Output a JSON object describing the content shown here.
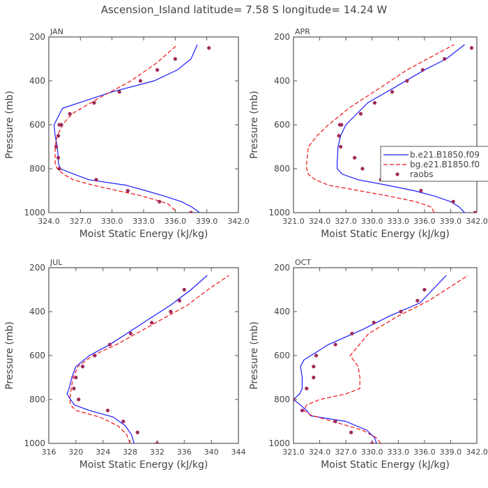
{
  "suptitle": "Ascension_Island  latitude= 7.58 S longitude= 14.24 W",
  "legend": {
    "entries": [
      "b.e21.B1850.f09",
      "bg.e21.B1850.f0",
      "raobs"
    ]
  },
  "colors": {
    "model_b": "#1a1aff",
    "model_bg": "#ee1111",
    "raobs": "#9e2a5b",
    "axis": "#555555"
  },
  "chart_data": [
    {
      "type": "line",
      "title": "JAN",
      "xlabel": "Moist Static Energy (kJ/kg)",
      "ylabel": "Pressure (mb)",
      "xlim": [
        324.0,
        342.0
      ],
      "ylim": [
        1000,
        200
      ],
      "xticks": [
        324,
        327,
        330,
        333,
        336,
        339,
        342
      ],
      "xtick_labels": [
        "324.0",
        "327.0",
        "330.0",
        "333.0",
        "336.0",
        "339.0",
        "342.0"
      ],
      "yticks": [
        200,
        400,
        600,
        800,
        1000
      ],
      "ytick_labels": [
        "200",
        "400",
        "600",
        "800",
        "1000"
      ],
      "series": [
        {
          "name": "b.e21.B1850.f09",
          "style": "solid",
          "x": [
            338.3,
            337.6,
            336.6,
            335.0,
            333.2,
            331.3,
            327.8,
            326.4,
            325.1,
            324.9,
            324.9,
            324.8,
            324.6,
            324.5,
            325.3,
            330.0,
            334.0,
            336.2,
            337.5,
            338.1
          ],
          "y": [
            1000,
            975,
            950,
            925,
            900,
            875,
            850,
            825,
            800,
            775,
            750,
            700,
            650,
            600,
            525,
            450,
            400,
            350,
            300,
            235
          ]
        },
        {
          "name": "bg.e21.B1850.f0",
          "style": "dashed",
          "x": [
            336.0,
            335.3,
            334.0,
            332.5,
            330.5,
            328.2,
            326.3,
            325.4,
            324.8,
            324.6,
            324.6,
            324.6,
            324.8,
            325.3,
            326.2,
            328.7,
            331.8,
            334.2,
            336.1
          ],
          "y": [
            990,
            960,
            940,
            920,
            900,
            875,
            850,
            825,
            800,
            775,
            750,
            700,
            650,
            600,
            550,
            480,
            400,
            320,
            240
          ]
        },
        {
          "name": "raobs",
          "style": "markers",
          "x": [
            337.5,
            334.5,
            331.5,
            328.5,
            325.0,
            324.9,
            324.7,
            324.9,
            325.0,
            325.2,
            326.0,
            328.3,
            330.7,
            332.7,
            334.3,
            336.0,
            339.2
          ],
          "y": [
            1000,
            950,
            900,
            850,
            800,
            750,
            700,
            650,
            600,
            600,
            550,
            500,
            450,
            400,
            350,
            300,
            250
          ]
        }
      ]
    },
    {
      "type": "line",
      "title": "APR",
      "xlabel": "Moist Static Energy (kJ/kg)",
      "ylabel": "Pressure (mb)",
      "xlim": [
        321.0,
        342.0
      ],
      "ylim": [
        1000,
        200
      ],
      "xticks": [
        321,
        324,
        327,
        330,
        333,
        336,
        339,
        342
      ],
      "xtick_labels": [
        "321.0",
        "324.0",
        "327.0",
        "330.0",
        "333.0",
        "336.0",
        "339.0",
        "342.0"
      ],
      "yticks": [
        200,
        400,
        600,
        800,
        1000
      ],
      "ytick_labels": [
        "200",
        "400",
        "600",
        "800",
        "1000"
      ],
      "series": [
        {
          "name": "b.e21.B1850.f09",
          "style": "solid",
          "x": [
            340.6,
            340.0,
            339.0,
            337.2,
            334.8,
            331.7,
            328.4,
            326.6,
            326.0,
            326.0,
            326.1,
            326.4,
            327.0,
            329.5,
            333.0,
            336.0,
            338.5,
            340.6
          ],
          "y": [
            1000,
            975,
            950,
            925,
            900,
            875,
            850,
            825,
            800,
            775,
            700,
            650,
            600,
            500,
            420,
            350,
            300,
            235
          ]
        },
        {
          "name": "bg.e21.B1850.f0",
          "style": "dashed",
          "x": [
            337.1,
            336.8,
            335.0,
            332.0,
            328.5,
            325.0,
            323.5,
            322.7,
            322.5,
            322.5,
            322.7,
            323.7,
            325.0,
            327.5,
            331.0,
            334.0,
            336.8,
            339.4
          ],
          "y": [
            1000,
            975,
            950,
            925,
            900,
            875,
            850,
            825,
            800,
            775,
            700,
            650,
            600,
            520,
            430,
            350,
            290,
            235
          ]
        },
        {
          "name": "raobs",
          "style": "markers",
          "x": [
            341.8,
            339.3,
            335.6,
            331.0,
            328.9,
            328.0,
            326.4,
            326.2,
            326.3,
            326.5,
            328.7,
            330.3,
            332.3,
            334.0,
            335.8,
            338.3,
            341.4
          ],
          "y": [
            1000,
            950,
            900,
            850,
            800,
            750,
            700,
            650,
            600,
            600,
            550,
            500,
            450,
            400,
            350,
            300,
            250
          ]
        }
      ]
    },
    {
      "type": "line",
      "title": "JUL",
      "xlabel": "Moist Static Energy (kJ/kg)",
      "ylabel": "Pressure (mb)",
      "xlim": [
        316,
        344
      ],
      "ylim": [
        1000,
        200
      ],
      "xticks": [
        316,
        320,
        324,
        328,
        332,
        336,
        340,
        344
      ],
      "xtick_labels": [
        "316",
        "320",
        "324",
        "328",
        "332",
        "336",
        "340",
        "344"
      ],
      "yticks": [
        200,
        400,
        600,
        800,
        1000
      ],
      "ytick_labels": [
        "200",
        "400",
        "600",
        "800",
        "1000"
      ],
      "series": [
        {
          "name": "b.e21.B1850.f09",
          "style": "solid",
          "x": [
            328.6,
            328.2,
            327.3,
            325.5,
            322.0,
            319.8,
            319.2,
            318.7,
            319.0,
            319.4,
            320.0,
            322.0,
            325.0,
            328.0,
            331.0,
            334.0,
            337.0,
            339.4
          ],
          "y": [
            1000,
            960,
            920,
            880,
            850,
            825,
            800,
            775,
            750,
            700,
            650,
            600,
            550,
            490,
            430,
            370,
            300,
            235
          ]
        },
        {
          "name": "bg.e21.B1850.f0",
          "style": "dashed",
          "x": [
            328.0,
            327.5,
            326.2,
            323.5,
            320.0,
            319.2,
            319.1,
            319.3,
            319.6,
            320.3,
            322.5,
            326.0,
            329.5,
            333.0,
            336.5,
            339.5,
            342.6
          ],
          "y": [
            1000,
            960,
            920,
            880,
            850,
            825,
            800,
            750,
            700,
            650,
            600,
            550,
            490,
            430,
            370,
            300,
            235
          ]
        },
        {
          "name": "raobs",
          "style": "markers",
          "x": [
            332.0,
            329.1,
            327.0,
            324.7,
            320.4,
            319.7,
            320.0,
            321.0,
            322.8,
            325.0,
            328.1,
            331.2,
            334.0,
            335.3,
            336.0
          ],
          "y": [
            1000,
            950,
            900,
            850,
            800,
            750,
            700,
            650,
            600,
            550,
            500,
            450,
            400,
            350,
            300
          ]
        }
      ]
    },
    {
      "type": "line",
      "title": "OCT",
      "xlabel": "Moist Static Energy (kJ/kg)",
      "ylabel": "Pressure (mb)",
      "xlim": [
        321.0,
        342.0
      ],
      "ylim": [
        1000,
        200
      ],
      "xticks": [
        321,
        324,
        327,
        330,
        333,
        336,
        339,
        342
      ],
      "xtick_labels": [
        "321.0",
        "324.0",
        "327.0",
        "330.0",
        "333.0",
        "336.0",
        "339.0",
        "342.0"
      ],
      "yticks": [
        200,
        400,
        600,
        800,
        1000
      ],
      "ytick_labels": [
        "200",
        "400",
        "600",
        "800",
        "1000"
      ],
      "series": [
        {
          "name": "b.e21.B1850.f09",
          "style": "solid",
          "x": [
            330.5,
            330.3,
            329.4,
            327.0,
            323.0,
            322.5,
            321.8,
            321.0,
            321.7,
            322.0,
            322.0,
            321.8,
            322.2,
            325.0,
            329.0,
            332.0,
            335.5,
            338.5
          ],
          "y": [
            1000,
            975,
            940,
            900,
            875,
            850,
            825,
            800,
            775,
            750,
            700,
            650,
            620,
            550,
            480,
            420,
            360,
            235
          ]
        },
        {
          "name": "bg.e21.B1850.f0",
          "style": "dashed",
          "x": [
            331.0,
            330.5,
            328.9,
            325.5,
            322.9,
            322.2,
            322.5,
            324.0,
            327.0,
            328.6,
            328.6,
            328.4,
            327.5,
            329.6,
            333.0,
            336.5,
            341.0
          ],
          "y": [
            1000,
            975,
            940,
            900,
            870,
            850,
            825,
            800,
            775,
            750,
            700,
            650,
            600,
            500,
            420,
            350,
            235
          ]
        },
        {
          "name": "raobs",
          "style": "markers",
          "x": [
            330.0,
            327.6,
            325.8,
            322.0,
            321.0,
            322.5,
            323.3,
            323.3,
            323.6,
            325.8,
            327.7,
            330.2,
            333.3,
            335.2,
            336.0
          ],
          "y": [
            1000,
            950,
            900,
            850,
            800,
            750,
            700,
            650,
            600,
            550,
            500,
            450,
            400,
            350,
            300
          ]
        }
      ]
    }
  ]
}
